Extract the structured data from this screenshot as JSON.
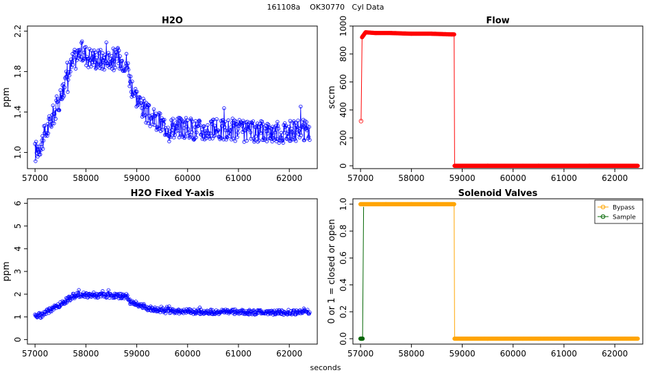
{
  "title": "161108a    OK30770   Cyl Data",
  "x_axis_label": "seconds",
  "chart_data": [
    {
      "id": "h2o",
      "type": "line",
      "title": "H2O",
      "xlabel": "",
      "ylabel": "ppm",
      "xlim": [
        56850,
        62550
      ],
      "ylim": [
        0.84,
        2.25
      ],
      "xticks": [
        57000,
        58000,
        59000,
        60000,
        61000,
        62000
      ],
      "yticks": [
        1.0,
        1.4,
        1.8,
        2.2
      ],
      "ytick_labels": [
        "1.0",
        "1.4",
        "1.8",
        "2.2"
      ],
      "series": [
        {
          "name": "H2O",
          "color": "#0000ff",
          "markers": "open-circle",
          "x": [
            57000,
            57150,
            57300,
            57450,
            57600,
            57750,
            57900,
            58050,
            58200,
            58350,
            58500,
            58650,
            58800,
            58900,
            59050,
            59200,
            59400,
            59600,
            59800,
            60000,
            60300,
            60600,
            60900,
            61200,
            61500,
            61800,
            62100,
            62400
          ],
          "values": [
            1.0,
            1.12,
            1.3,
            1.48,
            1.7,
            1.9,
            2.0,
            1.95,
            1.93,
            1.92,
            1.93,
            1.92,
            1.9,
            1.65,
            1.5,
            1.38,
            1.3,
            1.26,
            1.25,
            1.24,
            1.22,
            1.22,
            1.23,
            1.2,
            1.21,
            1.2,
            1.21,
            1.22
          ]
        }
      ]
    },
    {
      "id": "flow",
      "type": "line",
      "title": "Flow",
      "xlabel": "",
      "ylabel": "sccm",
      "xlim": [
        56850,
        62550
      ],
      "ylim": [
        -20,
        1000
      ],
      "xticks": [
        57000,
        58000,
        59000,
        60000,
        61000,
        62000
      ],
      "yticks": [
        0,
        200,
        400,
        600,
        800,
        1000
      ],
      "ytick_labels": [
        "0",
        "200",
        "400",
        "600",
        "800",
        "1000"
      ],
      "series": [
        {
          "name": "Flow",
          "color": "#ff0000",
          "markers": "circle",
          "x": [
            57010,
            57030,
            57100,
            57300,
            57600,
            58000,
            58400,
            58800,
            58840,
            58850,
            59500,
            60500,
            61500,
            62450
          ],
          "values": [
            320,
            920,
            955,
            950,
            950,
            945,
            945,
            940,
            940,
            0,
            0,
            0,
            0,
            0
          ]
        }
      ]
    },
    {
      "id": "h2o_fixed",
      "type": "line",
      "title": "H2O Fixed Y-axis",
      "xlabel": "",
      "ylabel": "ppm",
      "xlim": [
        56850,
        62550
      ],
      "ylim": [
        -0.2,
        6.2
      ],
      "xticks": [
        57000,
        58000,
        59000,
        60000,
        61000,
        62000
      ],
      "yticks": [
        0,
        1,
        2,
        3,
        4,
        5,
        6
      ],
      "ytick_labels": [
        "0",
        "1",
        "2",
        "3",
        "4",
        "5",
        "6"
      ],
      "series": [
        {
          "name": "H2O",
          "color": "#0000ff",
          "markers": "open-circle",
          "x": [
            57000,
            57150,
            57300,
            57450,
            57600,
            57750,
            57900,
            58050,
            58200,
            58350,
            58500,
            58650,
            58800,
            58900,
            59050,
            59200,
            59400,
            59600,
            59800,
            60000,
            60300,
            60600,
            60900,
            61200,
            61500,
            61800,
            62100,
            62400
          ],
          "values": [
            1.0,
            1.12,
            1.3,
            1.48,
            1.7,
            1.9,
            2.0,
            1.95,
            1.93,
            1.92,
            1.93,
            1.92,
            1.9,
            1.65,
            1.5,
            1.38,
            1.3,
            1.26,
            1.25,
            1.24,
            1.22,
            1.22,
            1.23,
            1.2,
            1.21,
            1.2,
            1.21,
            1.22
          ]
        }
      ]
    },
    {
      "id": "valves",
      "type": "line",
      "title": "Solenoid Valves",
      "xlabel": "",
      "ylabel": "0 or 1 = closed or open",
      "xlim": [
        56850,
        62550
      ],
      "ylim": [
        -0.04,
        1.04
      ],
      "xticks": [
        57000,
        58000,
        59000,
        60000,
        61000,
        62000
      ],
      "yticks": [
        0.0,
        0.2,
        0.4,
        0.6,
        0.8,
        1.0
      ],
      "ytick_labels": [
        "0.0",
        "0.2",
        "0.4",
        "0.6",
        "0.8",
        "1.0"
      ],
      "legend": {
        "placement": "top-right",
        "entries": [
          "Bypass",
          "Sample"
        ]
      },
      "series": [
        {
          "name": "Bypass",
          "color": "#ffa500",
          "markers": "circle",
          "x": [
            57000,
            57500,
            58000,
            58500,
            58840,
            58850,
            59500,
            60500,
            61500,
            62450
          ],
          "values": [
            1,
            1,
            1,
            1,
            1,
            0,
            0,
            0,
            0,
            0
          ]
        },
        {
          "name": "Sample",
          "color": "#006400",
          "markers": "circle",
          "x": [
            57000,
            57020,
            57040,
            57060
          ],
          "values": [
            0,
            0,
            0,
            0.98
          ]
        }
      ]
    }
  ]
}
